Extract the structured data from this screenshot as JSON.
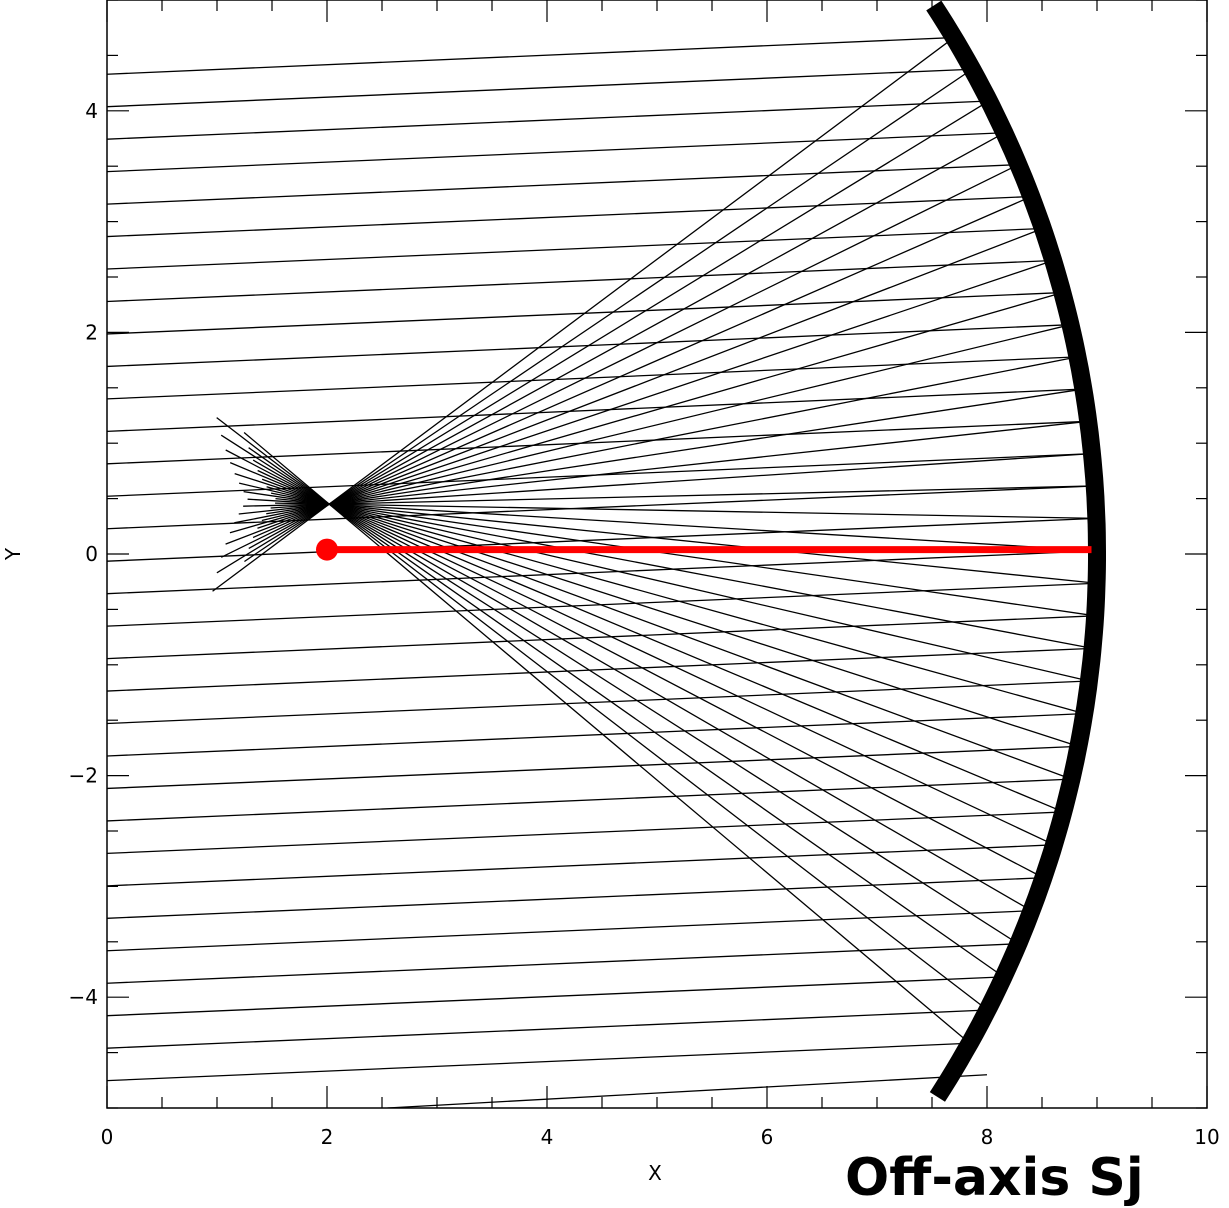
{
  "chart_data": {
    "type": "line",
    "title": "",
    "xlabel": "X",
    "ylabel": "Y",
    "xlim": [
      0,
      10
    ],
    "ylim": [
      -5,
      5
    ],
    "x_ticks": [
      "0",
      "2",
      "4",
      "6",
      "8",
      "10"
    ],
    "y_ticks": [
      "−4",
      "−2",
      "0",
      "2",
      "4"
    ],
    "x_tick_values": [
      0,
      2,
      4,
      6,
      8,
      10
    ],
    "y_tick_values": [
      -4,
      -2,
      0,
      2,
      4
    ],
    "x_minor_step": 0.5,
    "y_minor_step": 0.5,
    "grid": false,
    "annotation": "Off-axis Sj",
    "colors": {
      "rays": "#000000",
      "mirror": "#000000",
      "axis_ray": "#ff0000"
    },
    "mirror": {
      "center": [
        0,
        0
      ],
      "radius": 9.0,
      "y_range": [
        -4.9,
        4.95
      ]
    },
    "incoming_rays": {
      "x_start": 0,
      "y_start_top": 4.33,
      "y_start_bottom": -4.83,
      "spacing": 0.293,
      "slope": 0.043
    },
    "focus": [
      2.02,
      0.45
    ],
    "reflected_ray_end_x_range": [
      0.95,
      1.55
    ],
    "axis_ray": {
      "x": [
        2.0,
        8.95
      ],
      "y": [
        0.04,
        0.04
      ],
      "marker": "circle"
    },
    "stray_ray": {
      "x": [
        2.55,
        8.0
      ],
      "y": [
        -5.0,
        -4.7
      ]
    }
  }
}
